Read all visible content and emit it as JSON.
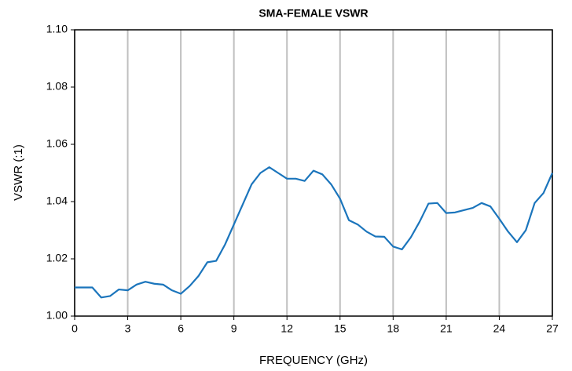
{
  "chart_data": {
    "type": "line",
    "title": "SMA-FEMALE VSWR",
    "xlabel": "FREQUENCY (GHz)",
    "ylabel": "VSWR (:1)",
    "x": [
      0,
      0.5,
      1,
      1.5,
      2,
      2.5,
      3,
      3.5,
      4,
      4.5,
      5,
      5.5,
      6,
      6.5,
      7,
      7.5,
      8,
      8.5,
      9,
      9.5,
      10,
      10.5,
      11,
      11.5,
      12,
      12.5,
      13,
      13.5,
      14,
      14.5,
      15,
      15.5,
      16,
      16.5,
      17,
      17.5,
      18,
      18.5,
      19,
      19.5,
      20,
      20.5,
      21,
      21.5,
      22,
      22.5,
      23,
      23.5,
      24,
      24.5,
      25,
      25.5,
      26,
      26.5,
      27
    ],
    "series": [
      {
        "name": "VSWR",
        "color": "#1b75bc",
        "values": [
          1.01,
          1.01,
          1.01,
          1.0065,
          1.007,
          1.0093,
          1.009,
          1.011,
          1.012,
          1.0113,
          1.011,
          1.009,
          1.0078,
          1.0105,
          1.014,
          1.0188,
          1.0193,
          1.025,
          1.032,
          1.039,
          1.046,
          1.05,
          1.052,
          1.05,
          1.048,
          1.048,
          1.0472,
          1.0508,
          1.0495,
          1.046,
          1.041,
          1.0335,
          1.032,
          1.0295,
          1.0278,
          1.0277,
          1.0243,
          1.0233,
          1.0275,
          1.033,
          1.0393,
          1.0395,
          1.036,
          1.0362,
          1.037,
          1.0378,
          1.0395,
          1.0383,
          1.034,
          1.0295,
          1.0258,
          1.03,
          1.0395,
          1.043,
          1.05
        ]
      }
    ],
    "xlim": [
      0,
      27
    ],
    "xticks": [
      0,
      3,
      6,
      9,
      12,
      15,
      18,
      21,
      24,
      27
    ],
    "ylim": [
      1.0,
      1.1
    ],
    "yticks": [
      {
        "value": 1.0,
        "label": "1.00"
      },
      1.02,
      1.04,
      1.06,
      1.08,
      {
        "value": 1.1,
        "label": "1.10"
      }
    ],
    "grid": "x"
  }
}
